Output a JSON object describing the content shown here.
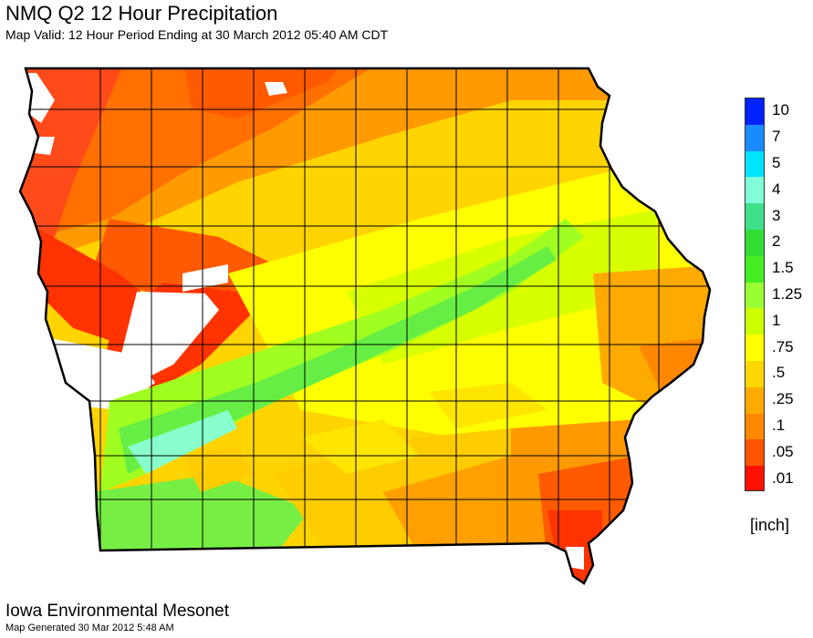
{
  "header": {
    "title": "NMQ Q2 12 Hour Precipitation",
    "subtitle": "Map Valid:  12 Hour Period Ending at 30 March 2012 05:40 AM CDT"
  },
  "map": {
    "region": "Iowa",
    "palette": {
      "no_precip": "#ffffff",
      "red": "#ff2000",
      "red_orange": "#ff5a00",
      "orange": "#ff9a00",
      "light_orange": "#ffbf00",
      "yellow_orange": "#ffd800",
      "yellow": "#ffff00",
      "yellow_green": "#c8ff00",
      "green": "#5cf33c",
      "teal": "#7fffd4",
      "border": "#000000"
    }
  },
  "legend": {
    "unit": "[inch]",
    "items": [
      {
        "label": "10",
        "color": "#0022ff"
      },
      {
        "label": "7",
        "color": "#1a8cff"
      },
      {
        "label": "5",
        "color": "#00e5ff"
      },
      {
        "label": "4",
        "color": "#80ffd8"
      },
      {
        "label": "3",
        "color": "#3ee08a"
      },
      {
        "label": "2",
        "color": "#33dd33"
      },
      {
        "label": "1.5",
        "color": "#44ee22"
      },
      {
        "label": "1.25",
        "color": "#99ff33"
      },
      {
        "label": "1",
        "color": "#ccff00"
      },
      {
        "label": ".75",
        "color": "#ffff00"
      },
      {
        "label": ".5",
        "color": "#ffd700"
      },
      {
        "label": ".25",
        "color": "#ffaa00"
      },
      {
        "label": ".1",
        "color": "#ff8800"
      },
      {
        "label": ".05",
        "color": "#ff5500"
      },
      {
        "label": ".01",
        "color": "#ff1100"
      }
    ]
  },
  "footer": {
    "organization": "Iowa Environmental Mesonet",
    "generated": "Map Generated 30 Mar 2012 5:48 AM"
  }
}
